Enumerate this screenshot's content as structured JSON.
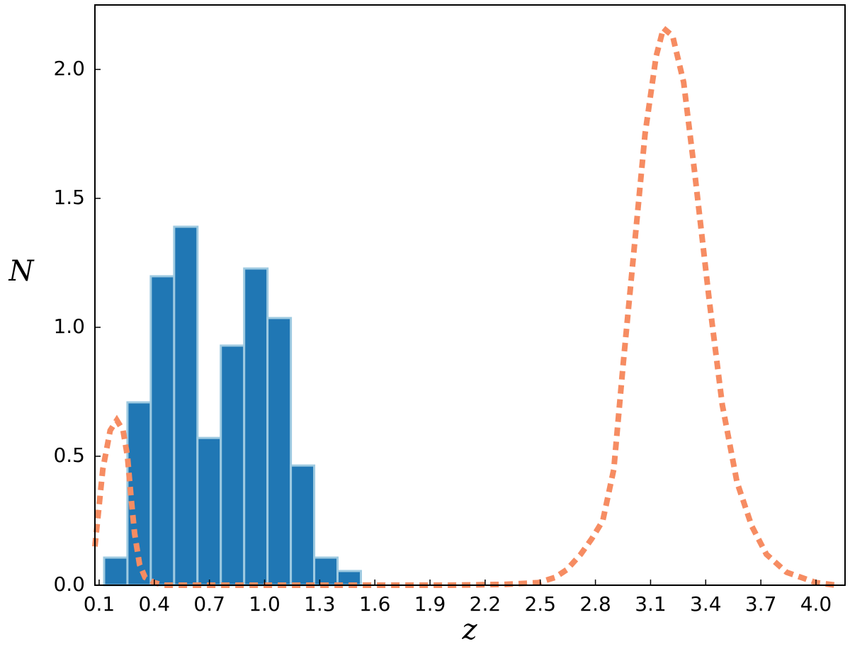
{
  "chart_data": {
    "type": "histogram",
    "bins": [
      0.127,
      0.254,
      0.381,
      0.508,
      0.635,
      0.762,
      0.889,
      1.016,
      1.143,
      1.27,
      1.397,
      1.524
    ],
    "values": [
      0.107,
      0.709,
      1.198,
      1.39,
      0.571,
      0.929,
      1.228,
      1.036,
      0.464,
      0.107,
      0.055
    ],
    "color": "#2077b4",
    "edge_color": "#9ecae1",
    "line": {
      "type": "line",
      "style": "dashed",
      "color": "#f68c62",
      "x": [
        0.077,
        0.12,
        0.16,
        0.196,
        0.23,
        0.254,
        0.275,
        0.293,
        0.32,
        0.35,
        0.4,
        0.45,
        1.0,
        1.5,
        2.0,
        2.3,
        2.49,
        2.58,
        2.644,
        2.72,
        2.78,
        2.84,
        2.9,
        2.95,
        3.01,
        3.07,
        3.13,
        3.17,
        3.22,
        3.28,
        3.34,
        3.42,
        3.49,
        3.57,
        3.65,
        3.73,
        3.84,
        4.0,
        4.11
      ],
      "values": [
        0.15,
        0.45,
        0.6,
        0.64,
        0.6,
        0.5,
        0.33,
        0.2,
        0.08,
        0.03,
        0.01,
        0,
        0,
        0,
        0,
        0.003,
        0.01,
        0.03,
        0.06,
        0.12,
        0.18,
        0.25,
        0.45,
        0.85,
        1.3,
        1.75,
        2.05,
        2.16,
        2.13,
        1.95,
        1.6,
        1.1,
        0.7,
        0.4,
        0.23,
        0.12,
        0.05,
        0.01,
        0
      ]
    },
    "xlabel": "z",
    "ylabel": "N",
    "xlim": [
      0.077,
      4.158
    ],
    "ylim": [
      0,
      2.25
    ],
    "xticks": [
      0.1,
      0.4,
      0.7,
      {
        "value": 1.0,
        "label": "1.0"
      },
      1.3,
      1.6,
      1.9,
      2.2,
      2.5,
      2.8,
      3.1,
      3.4,
      3.7,
      {
        "value": 4.0,
        "label": "4.0"
      }
    ],
    "yticks": [
      {
        "value": 0,
        "label": "0.0"
      },
      {
        "value": 0.5,
        "label": "0.5"
      },
      {
        "value": 1.0,
        "label": "1.0"
      },
      {
        "value": 1.5,
        "label": "1.5"
      },
      {
        "value": 2.0,
        "label": "2.0"
      }
    ],
    "grid": false
  }
}
